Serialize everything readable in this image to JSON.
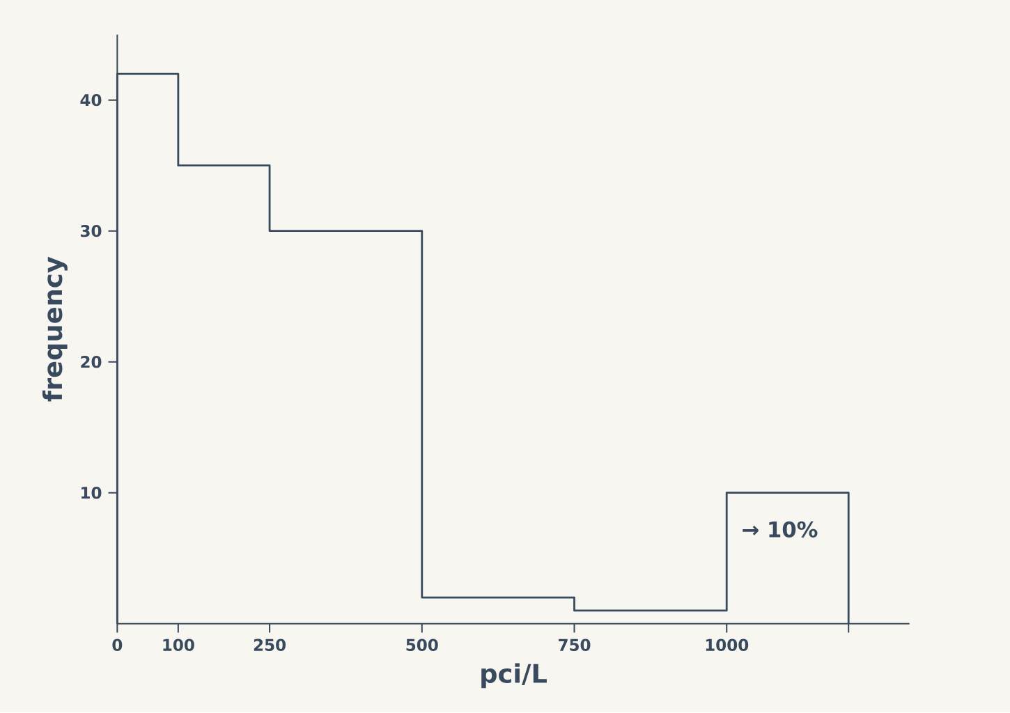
{
  "chart_data": {
    "type": "histogram",
    "xlabel": "pci/L",
    "ylabel": "frequency",
    "bins": [
      0,
      100,
      250,
      500,
      750,
      1000,
      1200
    ],
    "values": [
      42,
      35,
      30,
      2,
      1,
      10
    ],
    "color": "#3a4a5e",
    "xlim": [
      0,
      1300
    ],
    "ylim": [
      0,
      45
    ],
    "xticks": [
      0,
      100,
      250,
      500,
      750,
      1000,
      {
        "value": 1200,
        "label": null
      }
    ],
    "yticks": [
      10,
      20,
      30,
      40
    ],
    "grid": false,
    "annotations": [
      "→ 10%"
    ]
  }
}
